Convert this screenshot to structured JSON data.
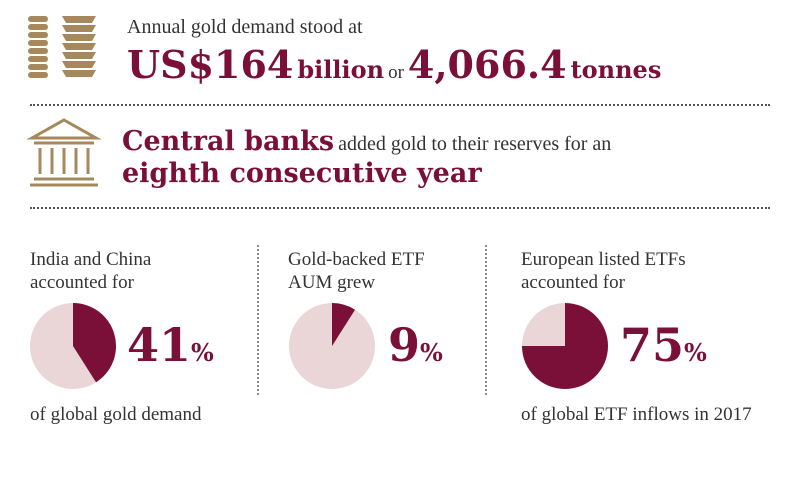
{
  "colors": {
    "maroon": "#7a1038",
    "gold": "#a5895c",
    "pale": "#ead6d6"
  },
  "header": {
    "demand_intro": "Annual gold demand stood at",
    "demand_value": "US$164",
    "demand_unit": "billion",
    "demand_or": "or",
    "demand_tonnes": "4,066.4",
    "demand_tonnes_unit": "tonnes"
  },
  "central_banks": {
    "bold": "Central banks",
    "text": "added gold to their reserves for an",
    "highlight": "eighth consecutive year"
  },
  "stats": [
    {
      "intro_line1": "India and China",
      "intro_line2": "accounted for",
      "value": 41,
      "value_label": "41",
      "unit": "%",
      "caption": "of global gold demand"
    },
    {
      "intro_line1": "Gold-backed ETF",
      "intro_line2": "AUM grew",
      "value": 9,
      "value_label": "9",
      "unit": "%",
      "caption": ""
    },
    {
      "intro_line1": "European listed ETFs",
      "intro_line2": "accounted for",
      "value": 75,
      "value_label": "75",
      "unit": "%",
      "caption": "of global ETF inflows in 2017"
    }
  ]
}
